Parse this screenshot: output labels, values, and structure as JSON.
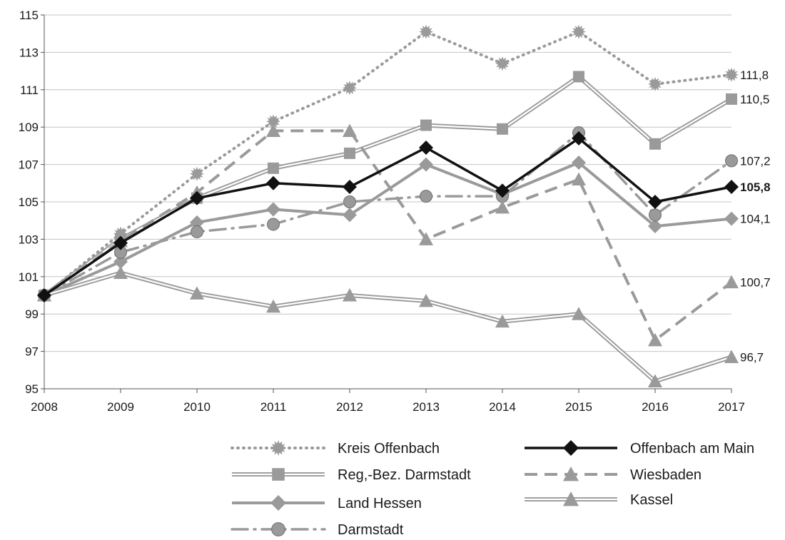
{
  "chart_data": {
    "type": "line",
    "x": [
      "2008",
      "2009",
      "2010",
      "2011",
      "2012",
      "2013",
      "2014",
      "2015",
      "2016",
      "2017"
    ],
    "ylim": [
      95,
      115
    ],
    "yticks": [
      "95",
      "97",
      "99",
      "101",
      "103",
      "105",
      "107",
      "109",
      "111",
      "113",
      "115"
    ],
    "grid": "horizontal",
    "legend_position": "bottom",
    "series": [
      {
        "name": "Kreis Offenbach",
        "style": "dotted-star",
        "color": "#9a9a9a",
        "values": [
          100,
          103.3,
          106.5,
          109.3,
          111.1,
          114.1,
          112.4,
          114.1,
          111.3,
          111.8
        ],
        "end_label": "111,8"
      },
      {
        "name": "Reg,-Bez. Darmstadt",
        "style": "double-square",
        "color": "#9a9a9a",
        "values": [
          100,
          103.0,
          105.2,
          106.8,
          107.6,
          109.1,
          108.9,
          111.7,
          108.1,
          110.5
        ],
        "end_label": "110,5"
      },
      {
        "name": "Land Hessen",
        "style": "solid-diamond",
        "color": "#9a9a9a",
        "values": [
          100,
          101.8,
          103.9,
          104.6,
          104.3,
          107.0,
          105.4,
          107.1,
          103.7,
          104.1
        ],
        "end_label": "104,1"
      },
      {
        "name": "Darmstadt",
        "style": "dashdot-circle",
        "color": "#9a9a9a",
        "values": [
          100,
          102.3,
          103.4,
          103.8,
          105.0,
          105.3,
          105.3,
          108.7,
          104.3,
          107.2
        ],
        "end_label": "107,2"
      },
      {
        "name": "Offenbach am Main",
        "style": "solid-black-diamond",
        "color": "#111111",
        "values": [
          100,
          102.8,
          105.2,
          106.0,
          105.8,
          107.9,
          105.6,
          108.4,
          105.0,
          105.8
        ],
        "end_label": "105,8"
      },
      {
        "name": "Wiesbaden",
        "style": "dashed-triangle",
        "color": "#9a9a9a",
        "values": [
          100,
          102.9,
          105.5,
          108.8,
          108.8,
          103.0,
          104.7,
          106.2,
          97.6,
          100.7
        ],
        "end_label": "100,7"
      },
      {
        "name": "Kassel",
        "style": "double-triangle",
        "color": "#9a9a9a",
        "values": [
          100,
          101.2,
          100.1,
          99.4,
          100.0,
          99.7,
          98.6,
          99.0,
          95.4,
          96.7
        ],
        "end_label": "96,7"
      }
    ]
  }
}
